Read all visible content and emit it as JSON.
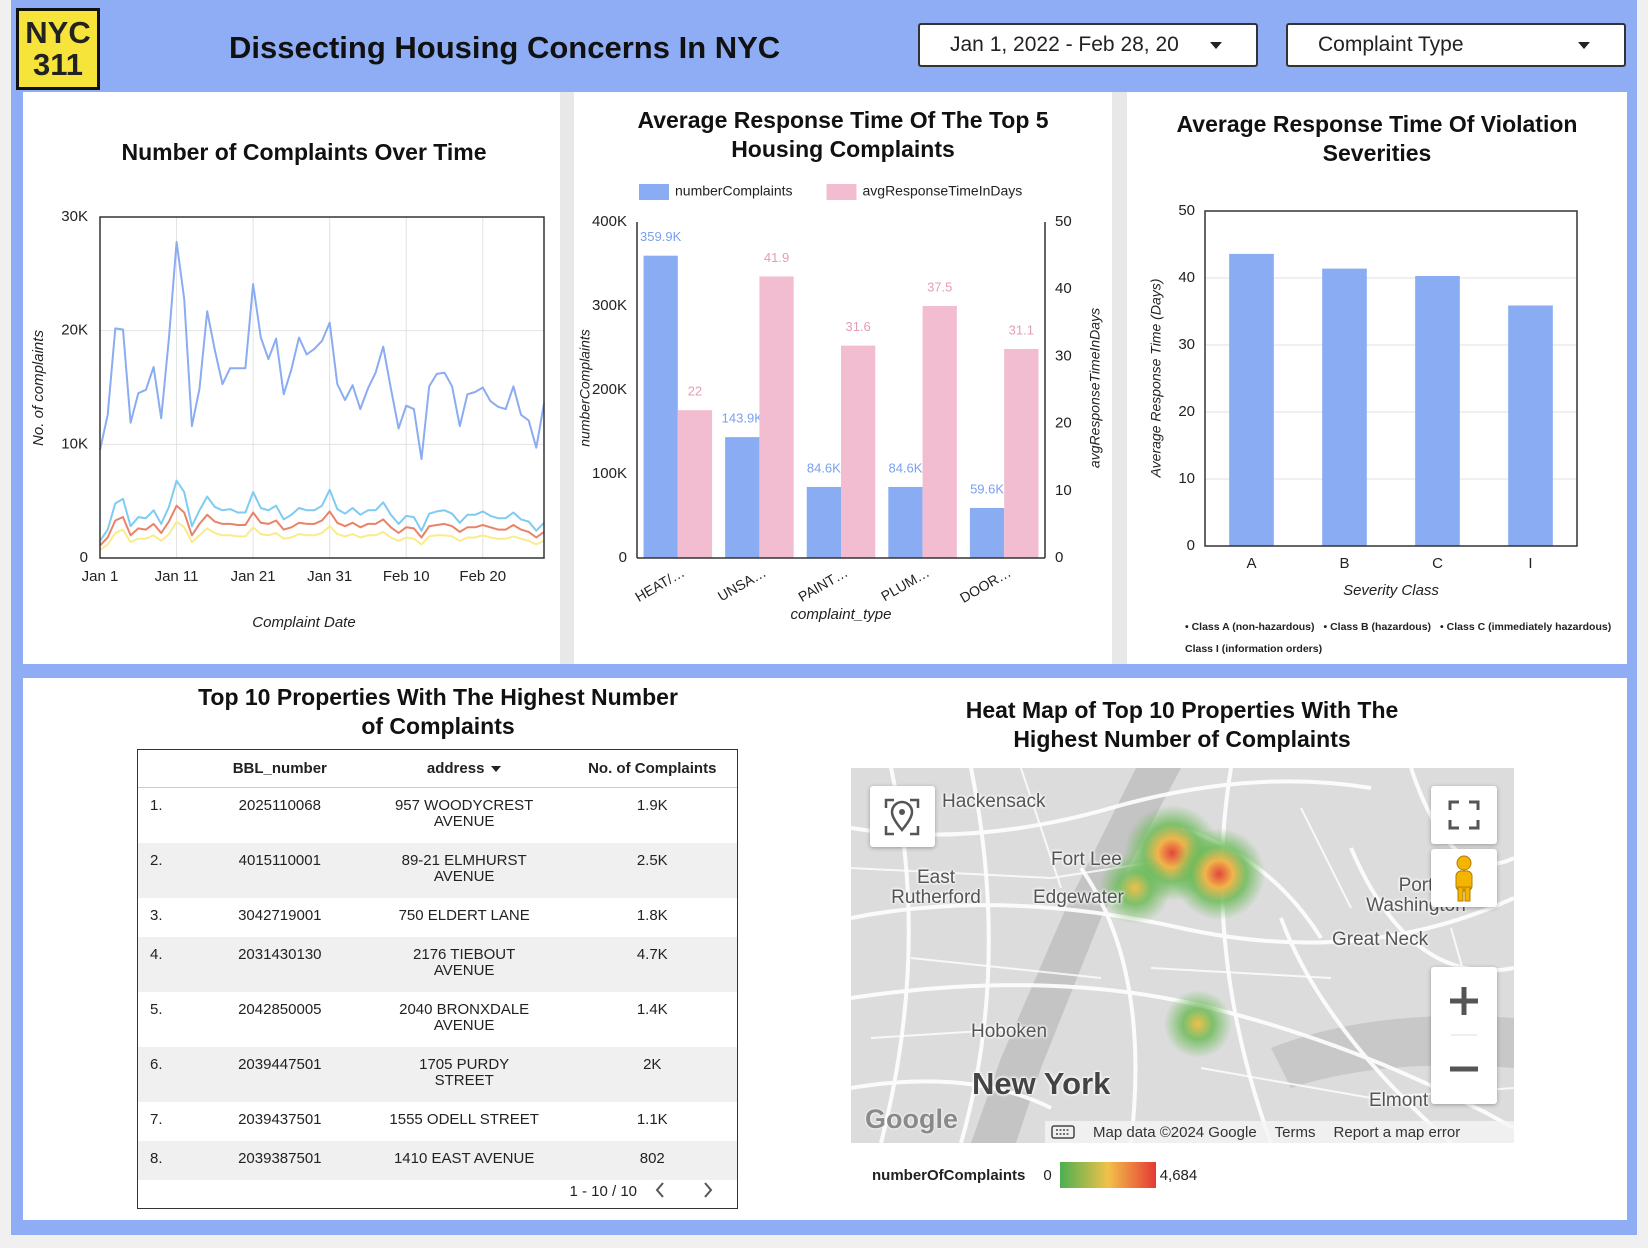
{
  "header": {
    "logo": [
      "NYC",
      "311"
    ],
    "title": "Dissecting Housing Concerns In NYC",
    "date_range": "Jan 1, 2022 - Feb 28, 20",
    "filter": "Complaint Type"
  },
  "chart_data": [
    {
      "type": "line",
      "title": "Number of Complaints Over Time",
      "x_label": "Complaint Date",
      "y_label": "No. of complaints",
      "x": [
        1,
        2,
        3,
        4,
        5,
        6,
        7,
        8,
        9,
        10,
        11,
        12,
        13,
        14,
        15,
        16,
        17,
        18,
        19,
        20,
        21,
        22,
        23,
        24,
        25,
        26,
        27,
        28,
        29,
        30,
        31,
        32,
        33,
        34,
        35,
        36,
        37,
        38,
        39,
        40,
        41,
        42,
        43,
        44,
        45,
        46,
        47,
        48,
        49,
        50,
        51,
        52,
        53,
        54,
        55,
        56,
        57,
        58,
        59
      ],
      "xlim": [
        1,
        59
      ],
      "xticks": [
        {
          "value": 1,
          "label": "Jan 1"
        },
        {
          "value": 11,
          "label": "Jan 11"
        },
        {
          "value": 21,
          "label": "Jan 21"
        },
        {
          "value": 31,
          "label": "Jan 31"
        },
        {
          "value": 41,
          "label": "Feb 10"
        },
        {
          "value": 51,
          "label": "Feb 20"
        }
      ],
      "ylim": [
        0,
        30000
      ],
      "yticks": [
        0,
        {
          "value": 10000,
          "label": "10K"
        },
        {
          "value": 20000,
          "label": "20K"
        },
        {
          "value": 30000,
          "label": "30K"
        }
      ],
      "grid": true,
      "series": [
        {
          "color": "#8aacf2",
          "values": [
            9500,
            12600,
            20200,
            20100,
            11900,
            14500,
            14800,
            16800,
            12300,
            19300,
            27800,
            22800,
            11600,
            14900,
            21700,
            18300,
            15300,
            16700,
            16700,
            16700,
            24100,
            19400,
            17500,
            19300,
            14400,
            16600,
            19400,
            17900,
            18400,
            19100,
            20700,
            15300,
            13900,
            15200,
            13100,
            14900,
            16300,
            18600,
            14900,
            11400,
            13400,
            13100,
            8700,
            15100,
            16200,
            16300,
            15100,
            11600,
            14400,
            14600,
            15000,
            13800,
            13300,
            13100,
            15100,
            12600,
            12100,
            9700,
            13600
          ]
        },
        {
          "color": "#7fcbf2",
          "values": [
            1500,
            2500,
            4800,
            5200,
            2800,
            3600,
            3500,
            4200,
            3000,
            4500,
            6800,
            5800,
            2800,
            4200,
            5400,
            4500,
            4200,
            4300,
            4000,
            4000,
            5800,
            4400,
            4200,
            4600,
            3400,
            3800,
            4400,
            4200,
            4200,
            4600,
            6000,
            4300,
            3900,
            4400,
            3800,
            4200,
            4200,
            4900,
            3800,
            3000,
            3700,
            3600,
            2400,
            3900,
            4100,
            4200,
            3900,
            3100,
            3800,
            3800,
            4100,
            3700,
            3500,
            3500,
            4000,
            3400,
            3200,
            2400,
            3100
          ]
        },
        {
          "color": "#e8836a",
          "values": [
            1100,
            1800,
            3300,
            3600,
            2000,
            2600,
            2500,
            3000,
            2200,
            3200,
            4600,
            4000,
            2000,
            3000,
            3800,
            3200,
            3000,
            3000,
            2900,
            2900,
            4000,
            3100,
            3000,
            3300,
            2500,
            2700,
            3100,
            3000,
            3000,
            3300,
            4100,
            3100,
            2800,
            3100,
            2700,
            3000,
            3000,
            3400,
            2700,
            2200,
            2700,
            2600,
            1800,
            2800,
            2900,
            3000,
            2800,
            2300,
            2700,
            2700,
            2900,
            2700,
            2500,
            2500,
            2900,
            2500,
            2300,
            1800,
            2300
          ]
        },
        {
          "color": "#f8ec8c",
          "values": [
            700,
            1200,
            2200,
            2500,
            1400,
            1700,
            1700,
            2000,
            1500,
            2100,
            3200,
            2700,
            1400,
            2000,
            2600,
            2200,
            2000,
            2000,
            1900,
            1900,
            2700,
            2100,
            2000,
            2200,
            1700,
            1800,
            2100,
            2000,
            2000,
            2200,
            2800,
            2100,
            1900,
            2100,
            1800,
            2000,
            2000,
            2300,
            1800,
            1500,
            1800,
            1700,
            1200,
            1900,
            2000,
            2000,
            1900,
            1500,
            1800,
            1800,
            2000,
            1800,
            1700,
            1700,
            1900,
            1700,
            1500,
            1200,
            1500
          ]
        }
      ]
    },
    {
      "type": "bar",
      "title": "Average Response Time Of The Top 5 Housing Complaints",
      "x_label": "complaint_type",
      "y_label": "numberComplaints",
      "y2_label": "avgResponseTimeInDays",
      "categories": [
        "HEAT/…",
        "UNSA…",
        "PAINT…",
        "PLUM…",
        "DOOR…"
      ],
      "series": [
        {
          "name": "numberComplaints",
          "color": "#8aacf2",
          "values": [
            359900,
            143900,
            84600,
            84600,
            59600
          ],
          "value_labels": [
            "359.9K",
            "143.9K",
            "84.6K",
            "84.6K",
            "59.6K"
          ]
        },
        {
          "name": "avgResponseTimeInDays",
          "color": "#f2bdd0",
          "axis": "y2",
          "values": [
            22,
            41.9,
            31.6,
            37.5,
            31.1
          ]
        }
      ],
      "ylim": [
        0,
        400000
      ],
      "yticks": [
        0,
        {
          "value": 100000,
          "label": "100K"
        },
        {
          "value": 200000,
          "label": "200K"
        },
        {
          "value": 300000,
          "label": "300K"
        },
        {
          "value": 400000,
          "label": "400K"
        }
      ],
      "y2lim": [
        0,
        50
      ],
      "y2ticks": [
        0,
        10,
        20,
        30,
        40,
        50
      ],
      "grid": false,
      "legend": "top"
    },
    {
      "type": "bar",
      "title": "Average Response Time Of Violation Severities",
      "x_label": "Severity Class",
      "y_label": "Average Response Time (Days)",
      "categories": [
        "A",
        "B",
        "C",
        "I"
      ],
      "values": [
        43.6,
        41.4,
        40.3,
        35.9
      ],
      "color": "#8aacf2",
      "ylim": [
        0,
        50
      ],
      "yticks": [
        0,
        10,
        20,
        30,
        40,
        50
      ],
      "grid": true,
      "notes": [
        "• Class A (non-hazardous)",
        "• Class B (hazardous)",
        "• Class C (immediately hazardous)",
        "Class I (information orders)"
      ]
    }
  ],
  "table": {
    "title": "Top 10 Properties With The Highest Number of Complaints",
    "columns": [
      "BBL_number",
      "address",
      "No. of Complaints"
    ],
    "rows": [
      [
        "1.",
        "2025110068",
        "957 WOODYCREST AVENUE",
        "1.9K"
      ],
      [
        "2.",
        "4015110001",
        "89-21 ELMHURST AVENUE",
        "2.5K"
      ],
      [
        "3.",
        "3042719001",
        "750 ELDERT LANE",
        "1.8K"
      ],
      [
        "4.",
        "2031430130",
        "2176 TIEBOUT AVENUE",
        "4.7K"
      ],
      [
        "5.",
        "2042850005",
        "2040 BRONXDALE AVENUE",
        "1.4K"
      ],
      [
        "6.",
        "2039447501",
        "1705 PURDY STREET",
        "2K"
      ],
      [
        "7.",
        "2039437501",
        "1555 ODELL STREET",
        "1.1K"
      ],
      [
        "8.",
        "2039387501",
        "1410 EAST AVENUE",
        "802"
      ]
    ],
    "pagination": "1 - 10 / 10"
  },
  "map": {
    "title": "Heat Map of Top 10 Properties With The Highest Number of Complaints",
    "places": [
      "Hackensack",
      "Fort Lee",
      "East Rutherford",
      "Edgewater",
      "Hoboken",
      "New York",
      "Port Washington",
      "Great Neck",
      "Elmont"
    ],
    "logo": "Google",
    "attribution": "Map data ©2024 Google",
    "links": [
      "Terms",
      "Report a map error"
    ],
    "legend": {
      "title": "numberOfComplaints",
      "min": 0,
      "max": {
        "value": 4684,
        "label": "4,684"
      }
    }
  }
}
